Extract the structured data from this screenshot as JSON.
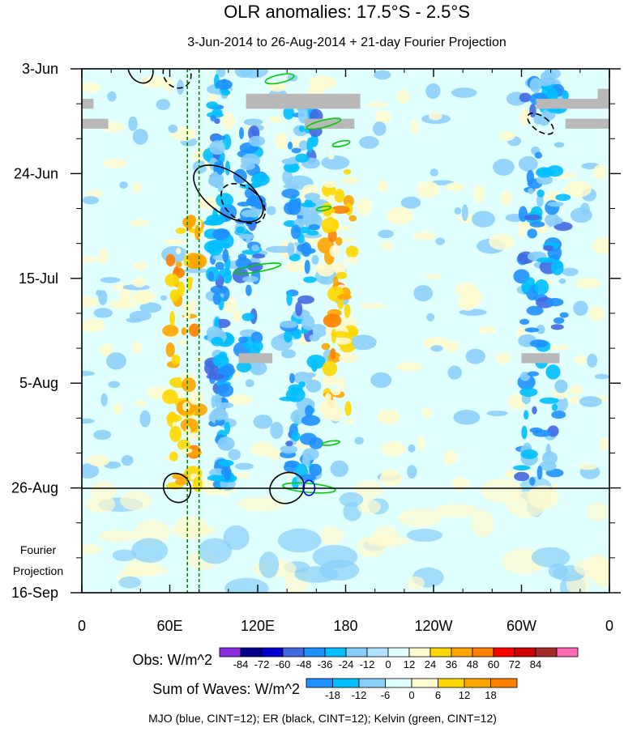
{
  "chart_data": {
    "type": "heatmap",
    "title": "OLR anomalies: 17.5°S - 2.5°S",
    "subtitle": "3-Jun-2014 to 26-Aug-2014 + 21-day Fourier Projection",
    "x_tick_labels": [
      "0",
      "60E",
      "120E",
      "180",
      "120W",
      "60W",
      "0"
    ],
    "x_tick_longitudes": [
      0,
      60,
      120,
      180,
      240,
      300,
      360
    ],
    "xlim": [
      0,
      360
    ],
    "y_tick_labels": [
      "3-Jun",
      "24-Jun",
      "15-Jul",
      "5-Aug",
      "26-Aug",
      "16-Sep"
    ],
    "y_tick_days": [
      0,
      21,
      42,
      63,
      84,
      105
    ],
    "ylim_days": [
      0,
      105
    ],
    "observation_end_day": 84,
    "projection_label_line1": "Fourier",
    "projection_label_line2": "Projection",
    "obs_legend": {
      "label": "Obs: W/m^2",
      "levels": [
        "-84",
        "-72",
        "-60",
        "-48",
        "-36",
        "-24",
        "-12",
        "0",
        "12",
        "24",
        "36",
        "48",
        "60",
        "72",
        "84"
      ],
      "colors": [
        "#8a2be2",
        "#00008b",
        "#0000cd",
        "#4169e1",
        "#1e90ff",
        "#00bfff",
        "#87cefa",
        "#b0e2ff",
        "#e0ffff",
        "#fffacd",
        "#ffd700",
        "#ffa500",
        "#ff7f00",
        "#ff0000",
        "#cd0000",
        "#a52a2a",
        "#ff69b4"
      ]
    },
    "waves_legend": {
      "label": "Sum of Waves: W/m^2",
      "levels": [
        "-18",
        "-12",
        "-6",
        "0",
        "6",
        "12",
        "18"
      ],
      "colors": [
        "#1e90ff",
        "#00bfff",
        "#87cefa",
        "#e0ffff",
        "#fffacd",
        "#ffd700",
        "#ffa500",
        "#ff7f00"
      ]
    },
    "footer": "MJO (blue, CINT=12); ER (black, CINT=12); Kelvin (green, CINT=12)",
    "mjo_reference_longitudes": [
      72,
      80
    ],
    "convective_bands": [
      {
        "lon": [
          88,
          100
        ],
        "day": [
          0,
          84
        ],
        "sign": "negative"
      },
      {
        "lon": [
          108,
          122
        ],
        "day": [
          10,
          60
        ],
        "sign": "negative"
      },
      {
        "lon": [
          140,
          160
        ],
        "day": [
          5,
          84
        ],
        "sign": "negative"
      },
      {
        "lon": [
          165,
          185
        ],
        "day": [
          20,
          70
        ],
        "sign": "positive"
      },
      {
        "lon": [
          60,
          80
        ],
        "day": [
          30,
          84
        ],
        "sign": "positive"
      },
      {
        "lon": [
          300,
          330
        ],
        "day": [
          0,
          84
        ],
        "sign": "negative"
      }
    ],
    "missing_data_bars": [
      {
        "lon": [
          0,
          8
        ],
        "day": [
          6,
          8
        ]
      },
      {
        "lon": [
          0,
          18
        ],
        "day": [
          10,
          12
        ]
      },
      {
        "lon": [
          112,
          140
        ],
        "day": [
          5,
          8
        ]
      },
      {
        "lon": [
          152,
          186
        ],
        "day": [
          10,
          12
        ]
      },
      {
        "lon": [
          130,
          190
        ],
        "day": [
          5,
          8
        ]
      },
      {
        "lon": [
          310,
          360
        ],
        "day": [
          6,
          8
        ]
      },
      {
        "lon": [
          352,
          360
        ],
        "day": [
          4,
          6
        ]
      },
      {
        "lon": [
          330,
          360
        ],
        "day": [
          10,
          12
        ]
      },
      {
        "lon": [
          107,
          130
        ],
        "day": [
          57,
          59
        ]
      },
      {
        "lon": [
          300,
          326
        ],
        "day": [
          57,
          59
        ]
      }
    ],
    "er_contours": [
      {
        "lon": 100,
        "day": 25,
        "dlon": 14,
        "dday": 8,
        "tilt": -55,
        "style": "solid"
      },
      {
        "lon": 110,
        "day": 27,
        "dlon": 11,
        "dday": 5,
        "tilt": -52,
        "style": "dashed"
      },
      {
        "lon": 40,
        "day": 0,
        "dlon": 8,
        "dday": 3,
        "tilt": -30,
        "style": "solid"
      },
      {
        "lon": 65,
        "day": 1,
        "dlon": 9,
        "dday": 3,
        "tilt": -40,
        "style": "dashed"
      },
      {
        "lon": 65,
        "day": 84,
        "dlon": 9,
        "dday": 3,
        "tilt": -30,
        "style": "solid"
      },
      {
        "lon": 140,
        "day": 84,
        "dlon": 12,
        "dday": 3,
        "tilt": -25,
        "style": "solid"
      },
      {
        "lon": 313,
        "day": 11,
        "dlon": 5,
        "dday": 3,
        "tilt": -55,
        "style": "dashed"
      }
    ],
    "mjo_contours": [
      {
        "lon": 155,
        "day": 84,
        "dlon": 4,
        "dday": 1.5,
        "tilt": 0,
        "style": "solid"
      }
    ],
    "kelvin_contours": [
      {
        "lon": 135,
        "day": 2,
        "dlon": 10,
        "dday": 0.8,
        "tilt": -12
      },
      {
        "lon": 165,
        "day": 11,
        "dlon": 12,
        "dday": 0.7,
        "tilt": -14
      },
      {
        "lon": 177,
        "day": 15,
        "dlon": 6,
        "dday": 0.5,
        "tilt": -12
      },
      {
        "lon": 165,
        "day": 28,
        "dlon": 5,
        "dday": 0.4,
        "tilt": -10
      },
      {
        "lon": 120,
        "day": 40,
        "dlon": 16,
        "dday": 0.7,
        "tilt": -10
      },
      {
        "lon": 170,
        "day": 75,
        "dlon": 6,
        "dday": 0.4,
        "tilt": -8
      },
      {
        "lon": 155,
        "day": 84,
        "dlon": 18,
        "dday": 0.9,
        "tilt": 5
      }
    ]
  }
}
